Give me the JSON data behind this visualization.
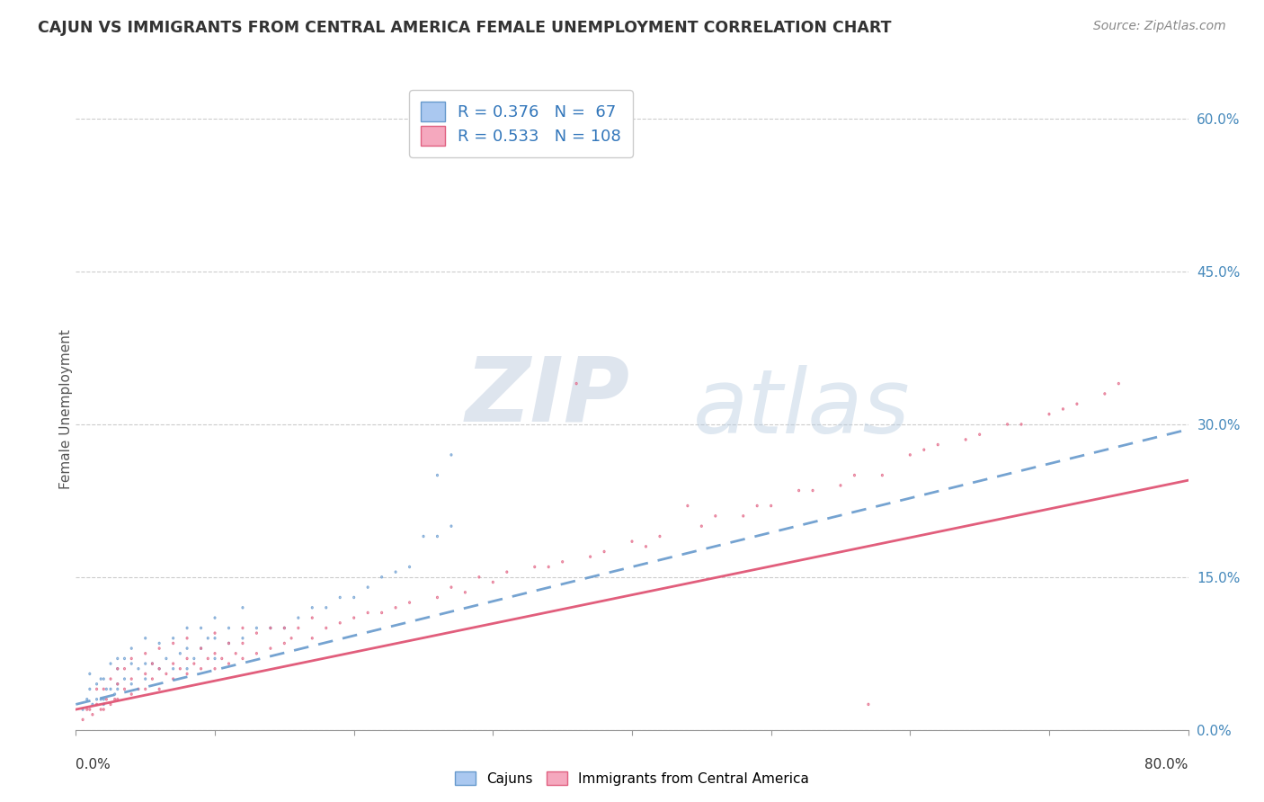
{
  "title": "CAJUN VS IMMIGRANTS FROM CENTRAL AMERICA FEMALE UNEMPLOYMENT CORRELATION CHART",
  "source": "Source: ZipAtlas.com",
  "ylabel": "Female Unemployment",
  "right_yticks": [
    "0.0%",
    "15.0%",
    "30.0%",
    "45.0%",
    "60.0%"
  ],
  "right_ytick_vals": [
    0.0,
    0.15,
    0.3,
    0.45,
    0.6
  ],
  "xmin": 0.0,
  "xmax": 0.8,
  "ymin": 0.0,
  "ymax": 0.63,
  "legend_r1": "R = 0.376",
  "legend_n1": "N =  67",
  "legend_r2": "R = 0.533",
  "legend_n2": "N = 108",
  "color_cajun_face": "#aac8f0",
  "color_cajun_edge": "#6699cc",
  "color_ca_face": "#f5a8be",
  "color_ca_edge": "#e06080",
  "color_cajun_line": "#6699cc",
  "color_ca_line": "#e05575",
  "legend_text_color": "#3377bb",
  "background_color": "#ffffff",
  "watermark_zip": "ZIP",
  "watermark_atlas": "atlas",
  "cajun_x": [
    0.005,
    0.008,
    0.01,
    0.01,
    0.012,
    0.015,
    0.015,
    0.018,
    0.018,
    0.02,
    0.02,
    0.02,
    0.022,
    0.025,
    0.025,
    0.028,
    0.03,
    0.03,
    0.03,
    0.03,
    0.035,
    0.035,
    0.04,
    0.04,
    0.04,
    0.045,
    0.05,
    0.05,
    0.05,
    0.055,
    0.06,
    0.06,
    0.065,
    0.07,
    0.07,
    0.075,
    0.08,
    0.08,
    0.08,
    0.085,
    0.09,
    0.09,
    0.095,
    0.1,
    0.1,
    0.1,
    0.11,
    0.11,
    0.12,
    0.12,
    0.13,
    0.14,
    0.15,
    0.16,
    0.17,
    0.18,
    0.19,
    0.2,
    0.21,
    0.22,
    0.23,
    0.24,
    0.25,
    0.26,
    0.26,
    0.27,
    0.27
  ],
  "cajun_y": [
    0.02,
    0.03,
    0.04,
    0.055,
    0.025,
    0.03,
    0.045,
    0.03,
    0.05,
    0.025,
    0.03,
    0.05,
    0.04,
    0.04,
    0.065,
    0.035,
    0.04,
    0.045,
    0.06,
    0.07,
    0.05,
    0.07,
    0.045,
    0.065,
    0.08,
    0.06,
    0.05,
    0.065,
    0.09,
    0.065,
    0.06,
    0.085,
    0.07,
    0.06,
    0.09,
    0.075,
    0.06,
    0.08,
    0.1,
    0.07,
    0.08,
    0.1,
    0.09,
    0.07,
    0.09,
    0.11,
    0.085,
    0.1,
    0.09,
    0.12,
    0.1,
    0.1,
    0.1,
    0.11,
    0.12,
    0.12,
    0.13,
    0.13,
    0.14,
    0.15,
    0.155,
    0.16,
    0.19,
    0.19,
    0.25,
    0.2,
    0.27
  ],
  "ca_x": [
    0.005,
    0.008,
    0.01,
    0.012,
    0.015,
    0.015,
    0.018,
    0.02,
    0.02,
    0.022,
    0.025,
    0.025,
    0.028,
    0.03,
    0.03,
    0.03,
    0.035,
    0.035,
    0.04,
    0.04,
    0.04,
    0.045,
    0.05,
    0.05,
    0.05,
    0.055,
    0.055,
    0.06,
    0.06,
    0.06,
    0.065,
    0.07,
    0.07,
    0.07,
    0.075,
    0.08,
    0.08,
    0.08,
    0.085,
    0.09,
    0.09,
    0.095,
    0.1,
    0.1,
    0.1,
    0.105,
    0.11,
    0.11,
    0.115,
    0.12,
    0.12,
    0.12,
    0.13,
    0.13,
    0.14,
    0.14,
    0.15,
    0.15,
    0.155,
    0.16,
    0.17,
    0.17,
    0.18,
    0.19,
    0.2,
    0.21,
    0.22,
    0.23,
    0.24,
    0.26,
    0.28,
    0.3,
    0.33,
    0.35,
    0.38,
    0.4,
    0.42,
    0.45,
    0.48,
    0.5,
    0.52,
    0.55,
    0.58,
    0.6,
    0.62,
    0.65,
    0.68,
    0.7,
    0.72,
    0.75,
    0.36,
    0.44,
    0.27,
    0.29,
    0.31,
    0.34,
    0.37,
    0.41,
    0.46,
    0.53,
    0.56,
    0.61,
    0.64,
    0.67,
    0.71,
    0.74,
    0.57,
    0.49
  ],
  "ca_y": [
    0.01,
    0.02,
    0.02,
    0.015,
    0.025,
    0.04,
    0.02,
    0.02,
    0.04,
    0.03,
    0.025,
    0.05,
    0.03,
    0.03,
    0.045,
    0.06,
    0.04,
    0.06,
    0.035,
    0.05,
    0.07,
    0.04,
    0.04,
    0.055,
    0.075,
    0.05,
    0.065,
    0.04,
    0.06,
    0.08,
    0.055,
    0.05,
    0.065,
    0.085,
    0.06,
    0.055,
    0.07,
    0.09,
    0.065,
    0.06,
    0.08,
    0.07,
    0.06,
    0.075,
    0.095,
    0.07,
    0.065,
    0.085,
    0.075,
    0.07,
    0.085,
    0.1,
    0.075,
    0.095,
    0.08,
    0.1,
    0.085,
    0.1,
    0.09,
    0.1,
    0.09,
    0.11,
    0.1,
    0.105,
    0.11,
    0.115,
    0.115,
    0.12,
    0.125,
    0.13,
    0.135,
    0.145,
    0.16,
    0.165,
    0.175,
    0.185,
    0.19,
    0.2,
    0.21,
    0.22,
    0.235,
    0.24,
    0.25,
    0.27,
    0.28,
    0.29,
    0.3,
    0.31,
    0.32,
    0.34,
    0.34,
    0.22,
    0.14,
    0.15,
    0.155,
    0.16,
    0.17,
    0.18,
    0.21,
    0.235,
    0.25,
    0.275,
    0.285,
    0.3,
    0.315,
    0.33,
    0.025,
    0.22
  ],
  "cajun_trend_x": [
    0.0,
    0.8
  ],
  "cajun_trend_y": [
    0.025,
    0.295
  ],
  "ca_trend_x": [
    0.0,
    0.8
  ],
  "ca_trend_y": [
    0.02,
    0.245
  ]
}
